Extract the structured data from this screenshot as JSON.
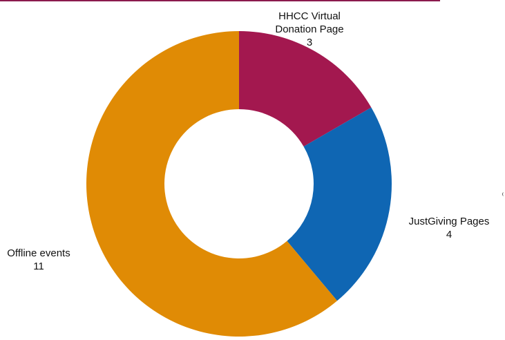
{
  "colors": {
    "rule": "#8b1a4d",
    "hole": "#ffffff"
  },
  "chart_data": {
    "type": "pie",
    "style": "donut",
    "total": 18,
    "start": "12 o'clock",
    "direction": "clockwise",
    "slices": [
      {
        "label_lines": [
          "HHCC Virtual",
          "Donation Page"
        ],
        "value": 3,
        "value_text": "3",
        "color": "#a3184f"
      },
      {
        "label_lines": [
          "JustGiving Pages"
        ],
        "value": 4,
        "value_text": "4",
        "color": "#0f66b3"
      },
      {
        "label_lines": [
          "Offline events"
        ],
        "value": 11,
        "value_text": "11",
        "color": "#e08b05"
      }
    ]
  }
}
